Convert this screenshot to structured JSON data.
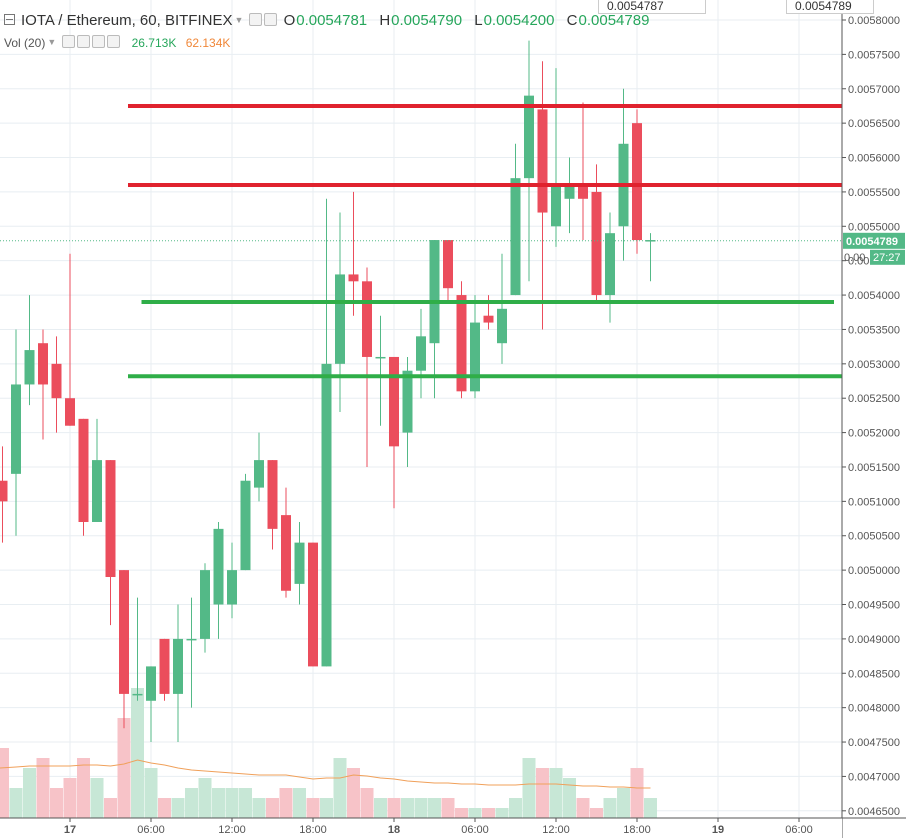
{
  "header": {
    "symbol": "IOTA / Ethereum, 60, BITFINEX",
    "ohlc": [
      {
        "label": "O",
        "value": "0.0054781"
      },
      {
        "label": "H",
        "value": "0.0054790"
      },
      {
        "label": "L",
        "value": "0.0054200"
      },
      {
        "label": "C",
        "value": "0.0054789"
      }
    ],
    "volume_label": "Vol (20)",
    "volume_value": "26.713K",
    "volume_ma_value": "62.134K",
    "top_tickers": [
      "0.0054787",
      "0.0054789"
    ]
  },
  "colors": {
    "up": "#53b987",
    "down": "#eb4d5c",
    "up_volume": "#c7e7d6",
    "down_volume": "#f7c3c8",
    "resistance": "#e0222e",
    "support": "#2fae48",
    "volume_ma": "#f0a05a",
    "grid": "#e8eef2"
  },
  "chart_data": {
    "type": "candlestick",
    "title": "IOTA / Ethereum, 60, BITFINEX",
    "y_axis": {
      "min": 0.004625,
      "max": 0.0058,
      "ticks": [
        "0.0058000",
        "0.0057500",
        "0.0057000",
        "0.0056500",
        "0.0056000",
        "0.0055500",
        "0.0055000",
        "0.0054500",
        "0.0054000",
        "0.0053500",
        "0.0053000",
        "0.0052500",
        "0.0052000",
        "0.0051500",
        "0.0051000",
        "0.0050500",
        "0.0050000",
        "0.0049500",
        "0.0049000",
        "0.0048500",
        "0.0048000",
        "0.0047500",
        "0.0047000",
        "0.0046500"
      ]
    },
    "x_axis": {
      "ticks": [
        {
          "label": "17",
          "bar": 5
        },
        {
          "label": "06:00",
          "bar": 11
        },
        {
          "label": "12:00",
          "bar": 17
        },
        {
          "label": "18:00",
          "bar": 23
        },
        {
          "label": "18",
          "bar": 29
        },
        {
          "label": "06:00",
          "bar": 35
        },
        {
          "label": "12:00",
          "bar": 41
        },
        {
          "label": "18:00",
          "bar": 47
        },
        {
          "label": "19",
          "bar": 53
        },
        {
          "label": "06:00",
          "bar": 59
        }
      ]
    },
    "last_price": "0.0054789",
    "countdown": "27:27",
    "price_badge_partial": "0.00",
    "candles": [
      {
        "o": 0.00513,
        "h": 0.00518,
        "l": 0.00504,
        "c": 0.0051
      },
      {
        "o": 0.00514,
        "h": 0.00535,
        "l": 0.00505,
        "c": 0.00527
      },
      {
        "o": 0.00527,
        "h": 0.0054,
        "l": 0.00524,
        "c": 0.00532
      },
      {
        "o": 0.00533,
        "h": 0.00535,
        "l": 0.00519,
        "c": 0.00527
      },
      {
        "o": 0.0053,
        "h": 0.00534,
        "l": 0.0052,
        "c": 0.00525
      },
      {
        "o": 0.00525,
        "h": 0.00546,
        "l": 0.00521,
        "c": 0.00521
      },
      {
        "o": 0.00522,
        "h": 0.00522,
        "l": 0.00505,
        "c": 0.00507
      },
      {
        "o": 0.00507,
        "h": 0.00522,
        "l": 0.00507,
        "c": 0.00516
      },
      {
        "o": 0.00516,
        "h": 0.00516,
        "l": 0.00492,
        "c": 0.00499
      },
      {
        "o": 0.005,
        "h": 0.005,
        "l": 0.00477,
        "c": 0.00482
      },
      {
        "o": 0.00482,
        "h": 0.00496,
        "l": 0.00481,
        "c": 0.00482
      },
      {
        "o": 0.00481,
        "h": 0.00486,
        "l": 0.00475,
        "c": 0.00486
      },
      {
        "o": 0.0049,
        "h": 0.0049,
        "l": 0.00481,
        "c": 0.00482
      },
      {
        "o": 0.00482,
        "h": 0.00495,
        "l": 0.00475,
        "c": 0.0049
      },
      {
        "o": 0.0049,
        "h": 0.00496,
        "l": 0.0048,
        "c": 0.0049
      },
      {
        "o": 0.0049,
        "h": 0.00501,
        "l": 0.00488,
        "c": 0.005
      },
      {
        "o": 0.00495,
        "h": 0.00507,
        "l": 0.0049,
        "c": 0.00506
      },
      {
        "o": 0.00495,
        "h": 0.00504,
        "l": 0.00493,
        "c": 0.005
      },
      {
        "o": 0.005,
        "h": 0.00514,
        "l": 0.005,
        "c": 0.00513
      },
      {
        "o": 0.00512,
        "h": 0.0052,
        "l": 0.0051,
        "c": 0.00516
      },
      {
        "o": 0.00516,
        "h": 0.00516,
        "l": 0.00503,
        "c": 0.00506
      },
      {
        "o": 0.00508,
        "h": 0.00512,
        "l": 0.00496,
        "c": 0.00497
      },
      {
        "o": 0.00498,
        "h": 0.00507,
        "l": 0.00495,
        "c": 0.00504
      },
      {
        "o": 0.00504,
        "h": 0.00504,
        "l": 0.00486,
        "c": 0.00486
      },
      {
        "o": 0.00486,
        "h": 0.00554,
        "l": 0.00486,
        "c": 0.0053
      },
      {
        "o": 0.0053,
        "h": 0.00552,
        "l": 0.00523,
        "c": 0.00543
      },
      {
        "o": 0.00543,
        "h": 0.00555,
        "l": 0.00537,
        "c": 0.00542
      },
      {
        "o": 0.00542,
        "h": 0.00544,
        "l": 0.00515,
        "c": 0.00531
      },
      {
        "o": 0.00531,
        "h": 0.00537,
        "l": 0.00521,
        "c": 0.00531
      },
      {
        "o": 0.00531,
        "h": 0.00531,
        "l": 0.00509,
        "c": 0.00518
      },
      {
        "o": 0.0052,
        "h": 0.00531,
        "l": 0.00515,
        "c": 0.00529
      },
      {
        "o": 0.00529,
        "h": 0.00538,
        "l": 0.00525,
        "c": 0.00534
      },
      {
        "o": 0.00533,
        "h": 0.00548,
        "l": 0.00525,
        "c": 0.00548
      },
      {
        "o": 0.00548,
        "h": 0.00548,
        "l": 0.00539,
        "c": 0.00541
      },
      {
        "o": 0.0054,
        "h": 0.00542,
        "l": 0.00525,
        "c": 0.00526
      },
      {
        "o": 0.00526,
        "h": 0.0054,
        "l": 0.00525,
        "c": 0.00536
      },
      {
        "o": 0.00537,
        "h": 0.0054,
        "l": 0.00535,
        "c": 0.00536
      },
      {
        "o": 0.00533,
        "h": 0.00546,
        "l": 0.0053,
        "c": 0.00538
      },
      {
        "o": 0.0054,
        "h": 0.00562,
        "l": 0.0054,
        "c": 0.00557
      },
      {
        "o": 0.00557,
        "h": 0.00577,
        "l": 0.00542,
        "c": 0.00569
      },
      {
        "o": 0.00567,
        "h": 0.00574,
        "l": 0.00535,
        "c": 0.00552
      },
      {
        "o": 0.0055,
        "h": 0.00573,
        "l": 0.00547,
        "c": 0.00556
      },
      {
        "o": 0.00554,
        "h": 0.0056,
        "l": 0.00549,
        "c": 0.00556
      },
      {
        "o": 0.00556,
        "h": 0.00568,
        "l": 0.00548,
        "c": 0.00554
      },
      {
        "o": 0.00555,
        "h": 0.00559,
        "l": 0.00539,
        "c": 0.0054
      },
      {
        "o": 0.0054,
        "h": 0.00552,
        "l": 0.00536,
        "c": 0.00549
      },
      {
        "o": 0.0055,
        "h": 0.0057,
        "l": 0.00545,
        "c": 0.00562
      },
      {
        "o": 0.00565,
        "h": 0.00567,
        "l": 0.00546,
        "c": 0.00548
      },
      {
        "o": 0.00548,
        "h": 0.00549,
        "l": 0.00542,
        "c": 0.00548
      }
    ],
    "volume": [
      7,
      3,
      5,
      6,
      3,
      4,
      6,
      4,
      2,
      10,
      13,
      5,
      2,
      2,
      3,
      4,
      3,
      3,
      3,
      2,
      2,
      3,
      3,
      2,
      2,
      6,
      5,
      3,
      2,
      2,
      2,
      2,
      2,
      2,
      1,
      1,
      1,
      1,
      2,
      6,
      5,
      5,
      4,
      2,
      1,
      2,
      3,
      5,
      2
    ],
    "volume_scale_max": 13,
    "volume_ma": [
      5.0,
      5.1,
      5.2,
      5.2,
      5.2,
      5.2,
      5.3,
      5.3,
      5.2,
      5.4,
      5.8,
      5.5,
      5.3,
      5.0,
      4.8,
      4.7,
      4.6,
      4.5,
      4.4,
      4.3,
      4.3,
      4.3,
      4.1,
      3.9,
      4.0,
      4.0,
      4.3,
      4.2,
      4.0,
      3.9,
      3.7,
      3.6,
      3.5,
      3.5,
      3.4,
      3.4,
      3.3,
      3.3,
      3.3,
      3.4,
      3.4,
      3.4,
      3.3,
      3.2,
      3.2,
      3.1,
      3.1,
      3.0,
      3.0
    ],
    "horizontal_lines": [
      {
        "price": 0.005675,
        "kind": "resistance",
        "from_bar": 9,
        "extends_right": true
      },
      {
        "price": 0.00556,
        "kind": "resistance",
        "from_bar": 9,
        "extends_right": true
      },
      {
        "price": 0.00539,
        "kind": "support",
        "from_bar": 10,
        "extends_right": false
      },
      {
        "price": 0.005282,
        "kind": "support",
        "from_bar": 9,
        "extends_right": true
      }
    ],
    "grid": true
  }
}
